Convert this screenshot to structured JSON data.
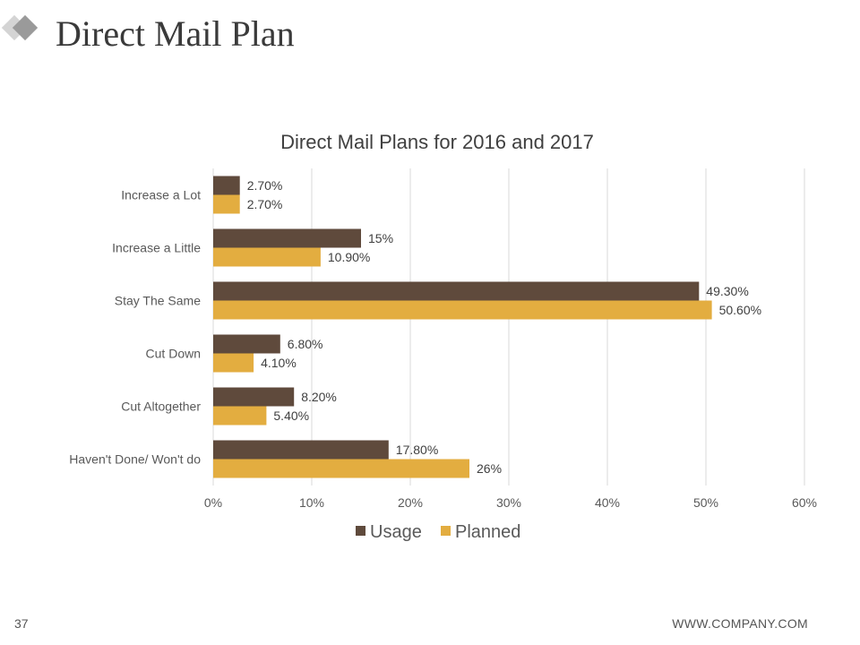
{
  "slide": {
    "title": "Direct Mail Plan",
    "page_number": "37",
    "footer_url": "WWW.COMPANY.COM"
  },
  "colors": {
    "usage": "#5f4a3c",
    "planned": "#e3ad40",
    "grid": "#d9d9d9",
    "text": "#595959"
  },
  "chart_data": {
    "type": "bar",
    "orientation": "horizontal",
    "title": "Direct Mail Plans for 2016 and 2017",
    "categories": [
      "Increase a Lot",
      "Increase a Little",
      "Stay The Same",
      "Cut Down",
      "Cut Altogether",
      "Haven't Done/ Won't do"
    ],
    "series": [
      {
        "name": "Usage",
        "values": [
          2.7,
          15,
          49.3,
          6.8,
          8.2,
          17.8
        ],
        "labels": [
          "2.70%",
          "15%",
          "49.30%",
          "6.80%",
          "8.20%",
          "17.80%"
        ]
      },
      {
        "name": "Planned",
        "values": [
          2.7,
          10.9,
          50.6,
          4.1,
          5.4,
          26
        ],
        "labels": [
          "2.70%",
          "10.90%",
          "50.60%",
          "4.10%",
          "5.40%",
          "26%"
        ]
      }
    ],
    "xlim": [
      0,
      60
    ],
    "xticks": [
      0,
      10,
      20,
      30,
      40,
      50,
      60
    ],
    "xtick_labels": [
      "0%",
      "10%",
      "20%",
      "30%",
      "40%",
      "50%",
      "60%"
    ],
    "grid": true,
    "legend_position": "bottom"
  }
}
